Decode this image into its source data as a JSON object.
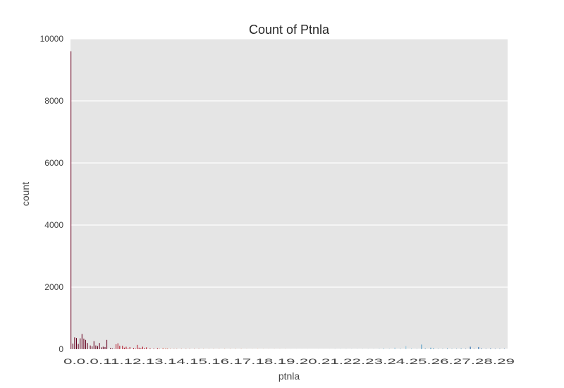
{
  "chart_data": {
    "type": "bar",
    "title": "Count of Ptnla",
    "xlabel": "ptnla",
    "ylabel": "count",
    "ylim": [
      0,
      10000
    ],
    "yticks": [
      0,
      2000,
      4000,
      6000,
      8000,
      10000
    ],
    "grid": true,
    "legend": "none",
    "background": "#e5e5e5",
    "palette": [
      "#67001f",
      "#b2182b",
      "#d6604d",
      "#f4a582",
      "#fddbc7",
      "#f7f7f7",
      "#d1e5f0",
      "#92c5de",
      "#4393c3",
      "#2166ac"
    ],
    "xtick_text": "0.0.0.11.12.13.14.15.16.17.18.19.20.21.22.23.24.25.26.27.28.29",
    "values": [
      9600,
      0,
      180,
      0,
      380,
      0,
      360,
      0,
      170,
      0,
      350,
      0,
      490,
      0,
      340,
      0,
      300,
      0,
      200,
      0,
      0,
      120,
      0,
      90,
      0,
      260,
      0,
      120,
      0,
      100,
      0,
      200,
      0,
      60,
      0,
      80,
      0,
      70,
      0,
      300,
      0,
      0,
      0,
      40,
      0,
      20,
      0,
      10,
      0,
      160,
      0,
      190,
      0,
      110,
      0,
      0,
      110,
      0,
      50,
      0,
      80,
      0,
      30,
      0,
      70,
      0,
      0,
      0,
      40,
      0,
      20,
      0,
      140,
      0,
      50,
      0,
      30,
      0,
      80,
      0,
      40,
      0,
      60,
      0,
      0,
      0,
      30,
      0,
      0,
      0,
      20,
      0,
      0,
      0,
      30,
      0,
      20,
      0,
      0,
      0,
      40,
      0,
      0,
      30,
      0,
      20,
      0,
      0,
      10,
      0,
      0,
      0,
      10,
      0,
      0,
      10,
      0,
      0,
      0,
      0,
      10,
      0,
      0,
      0,
      0,
      10,
      0,
      0,
      0,
      10,
      0,
      0,
      0,
      0,
      10,
      0,
      0,
      0,
      0,
      10,
      0,
      0,
      0,
      0,
      10,
      0,
      0,
      0,
      0,
      0,
      10,
      0,
      0,
      0,
      0,
      10,
      0,
      0,
      0,
      0,
      0,
      10,
      0,
      0,
      0,
      0,
      0,
      10,
      0,
      0,
      0,
      0,
      0,
      10,
      0,
      0,
      0,
      0,
      0,
      10,
      0,
      0,
      0,
      0,
      0,
      10,
      0,
      0,
      0,
      0,
      0,
      10,
      0,
      0,
      0,
      0,
      0,
      10,
      0,
      0,
      0,
      0,
      0,
      20,
      0,
      0,
      0,
      0,
      0,
      10,
      0,
      0,
      0,
      0,
      0,
      10,
      0,
      0,
      0,
      0,
      0,
      10,
      0,
      0,
      0,
      0,
      0,
      10,
      0,
      0,
      0,
      0,
      0,
      10,
      0,
      0,
      0,
      0,
      0,
      10,
      0,
      0,
      0,
      0,
      0,
      10,
      0,
      0,
      0,
      0,
      0,
      10,
      0,
      0,
      0,
      0,
      0,
      10,
      0,
      0,
      0,
      0,
      0,
      20,
      0,
      0,
      0,
      0,
      0,
      10,
      0,
      0,
      0,
      0,
      0,
      10,
      0,
      0,
      0,
      0,
      0,
      10,
      0,
      0,
      0,
      0,
      0,
      10,
      0,
      0,
      0,
      0,
      0,
      10,
      0,
      0,
      0,
      0,
      0,
      10,
      0,
      0,
      0,
      0,
      0,
      10,
      0,
      0,
      0,
      0,
      0,
      10,
      0,
      0,
      0,
      0,
      0,
      10,
      0,
      0,
      0,
      0,
      0,
      10,
      0,
      0,
      0,
      0,
      0,
      10,
      0,
      0,
      0,
      0,
      0,
      10,
      0,
      0,
      0,
      0,
      30,
      0,
      0,
      0,
      0,
      0,
      10,
      0,
      0,
      0,
      0,
      0,
      50,
      0,
      0,
      0,
      0,
      0,
      20,
      0,
      0,
      0,
      0,
      0,
      100,
      0,
      0,
      0,
      0,
      0,
      20,
      0,
      0,
      0,
      0,
      0,
      10,
      0,
      0,
      0,
      0,
      150,
      0,
      0,
      0,
      20,
      0,
      0,
      0,
      0,
      0,
      50,
      0,
      0,
      30,
      0,
      0,
      0,
      0,
      10,
      0,
      0,
      0,
      0,
      10,
      0,
      0,
      0,
      0,
      20,
      0,
      0,
      0,
      0,
      10,
      0,
      0,
      0,
      0,
      10,
      0,
      0,
      0,
      0,
      20,
      0,
      0,
      0,
      0,
      10,
      0,
      0,
      0,
      0,
      80,
      0,
      0,
      0,
      10,
      0,
      0,
      0,
      0,
      70,
      0,
      0,
      20,
      0,
      0,
      0,
      0,
      10,
      0,
      0,
      0,
      0,
      20,
      0,
      0,
      0,
      0,
      10,
      0,
      0,
      0,
      0,
      10,
      0,
      0,
      0,
      0,
      10,
      0,
      0,
      0
    ]
  }
}
